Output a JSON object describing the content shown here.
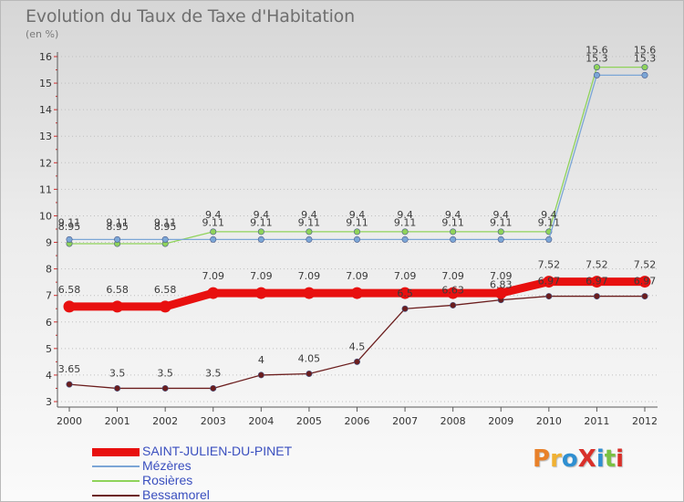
{
  "header": {
    "title": "Evolution du Taux de Taxe d'Habitation",
    "subtitle": "(en %)"
  },
  "brand": {
    "text": "ProXiti",
    "letter_colors": [
      "#e8812a",
      "#f0b133",
      "#2f8fd1",
      "#d9302a",
      "#2f8fd1",
      "#7ac143",
      "#d9302a"
    ]
  },
  "chart_data": {
    "type": "line",
    "title": "Evolution du Taux de Taxe d'Habitation",
    "subtitle": "(en %)",
    "xlabel": "",
    "ylabel": "",
    "x": [
      "2000",
      "2001",
      "2002",
      "2003",
      "2004",
      "2005",
      "2006",
      "2007",
      "2008",
      "2009",
      "2010",
      "2011",
      "2012"
    ],
    "ylim": [
      3,
      16
    ],
    "yticks": [
      "3",
      "4",
      "5",
      "6",
      "7",
      "8",
      "9",
      "10",
      "11",
      "12",
      "13",
      "14",
      "15",
      "16"
    ],
    "grid": "horizontal dotted",
    "legend_position": "bottom-left",
    "series": [
      {
        "name": "SAINT-JULIEN-DU-PINET",
        "color": "#e8100f",
        "values": [
          6.58,
          6.58,
          6.58,
          7.09,
          7.09,
          7.09,
          7.09,
          7.09,
          7.09,
          7.09,
          7.52,
          7.52,
          7.52
        ],
        "labels": [
          "6.58",
          "6.58",
          "6.58",
          "7.09",
          "7.09",
          "7.09",
          "7.09",
          "7.09",
          "7.09",
          "7.09",
          "7.52",
          "7.52",
          "7.52"
        ]
      },
      {
        "name": "Mézères",
        "color": "#7ba6d6",
        "values": [
          9.11,
          9.11,
          9.11,
          9.11,
          9.11,
          9.11,
          9.11,
          9.11,
          9.11,
          9.11,
          9.11,
          15.3,
          15.3
        ],
        "labels": [
          "9.11",
          "9.11",
          "9.11",
          "9.11",
          "9.11",
          "9.11",
          "9.11",
          "9.11",
          "9.11",
          "9.11",
          "9.11",
          "15.3",
          "15.3"
        ]
      },
      {
        "name": "Rosières",
        "color": "#8fd35a",
        "values": [
          8.95,
          8.95,
          8.95,
          9.4,
          9.4,
          9.4,
          9.4,
          9.4,
          9.4,
          9.4,
          9.4,
          15.6,
          15.6
        ],
        "labels": [
          "8.95",
          "8.95",
          "8.95",
          "9.4",
          "9.4",
          "9.4",
          "9.4",
          "9.4",
          "9.4",
          "9.4",
          "9.4",
          "15.6",
          "15.6"
        ]
      },
      {
        "name": "Bessamorel",
        "color": "#6b1d1d",
        "values": [
          3.65,
          3.5,
          3.5,
          3.5,
          4,
          4.05,
          4.5,
          6.5,
          6.63,
          6.83,
          6.97,
          6.97,
          6.97
        ],
        "labels": [
          "3.65",
          "3.5",
          "3.5",
          "3.5",
          "4",
          "4.05",
          "4.5",
          "6.5",
          "6.63",
          "6.83",
          "6.97",
          "6.97",
          "6.97"
        ]
      }
    ]
  }
}
